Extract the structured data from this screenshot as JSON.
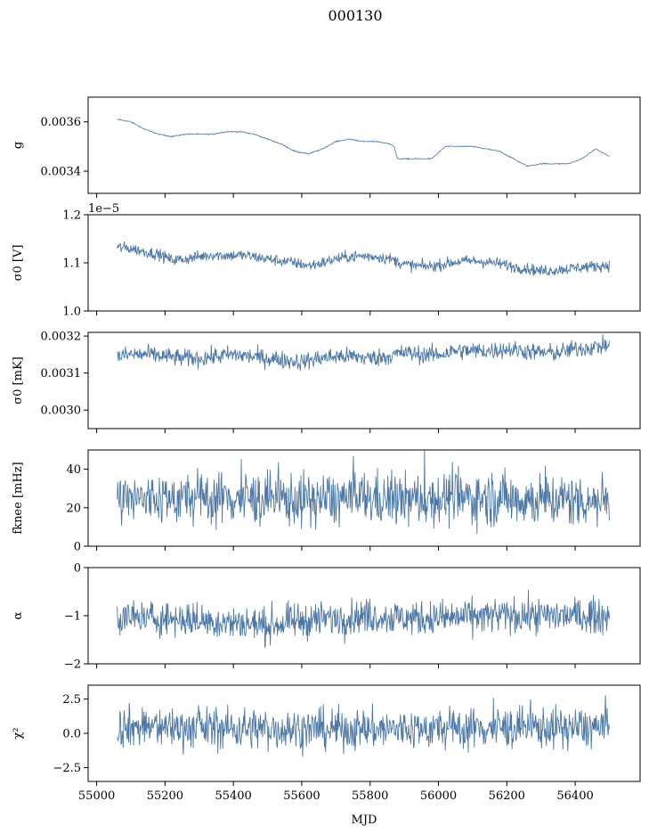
{
  "figure": {
    "title": "000130",
    "xlabel": "MJD",
    "x_ticks": [
      "55000",
      "55200",
      "55400",
      "55600",
      "55800",
      "56000",
      "56200",
      "56400"
    ],
    "xlim": [
      54975,
      56590
    ],
    "series_color": "#4e79a7"
  },
  "chart_data": [
    {
      "type": "line",
      "ylabel": "g",
      "ylim": [
        0.00331,
        0.0037
      ],
      "y_ticks": [
        0.0034,
        0.0036
      ],
      "y_tick_labels": [
        "0.0034",
        "0.0036"
      ],
      "offset_text": "",
      "noise": 1.2e-06,
      "x": [
        55060,
        55100,
        55140,
        55180,
        55220,
        55260,
        55300,
        55340,
        55380,
        55420,
        55460,
        55500,
        55540,
        55580,
        55620,
        55660,
        55700,
        55740,
        55780,
        55820,
        55860,
        55870,
        55880,
        55900,
        55940,
        55980,
        56020,
        56060,
        56100,
        56140,
        56180,
        56220,
        56260,
        56300,
        56340,
        56380,
        56420,
        56460,
        56500
      ],
      "y": [
        0.00361,
        0.0036,
        0.00357,
        0.00355,
        0.00354,
        0.00355,
        0.00355,
        0.00355,
        0.00356,
        0.00356,
        0.00355,
        0.00353,
        0.00351,
        0.00348,
        0.00347,
        0.00349,
        0.00352,
        0.00353,
        0.00352,
        0.00352,
        0.00351,
        0.0035,
        0.00345,
        0.00345,
        0.00345,
        0.00345,
        0.0035,
        0.0035,
        0.0035,
        0.00349,
        0.00348,
        0.00345,
        0.00342,
        0.00343,
        0.00343,
        0.00343,
        0.00345,
        0.00349,
        0.00346
      ]
    },
    {
      "type": "line",
      "ylabel": "σ0 [V]",
      "ylim": [
        1.0,
        1.2
      ],
      "y_ticks": [
        1.0,
        1.1,
        1.2
      ],
      "y_tick_labels": [
        "1.0",
        "1.1",
        "1.2"
      ],
      "offset_text": "1e−5",
      "noise": 0.006,
      "x": [
        55060,
        55100,
        55140,
        55180,
        55220,
        55260,
        55300,
        55340,
        55380,
        55420,
        55460,
        55500,
        55540,
        55580,
        55620,
        55660,
        55700,
        55740,
        55780,
        55820,
        55860,
        55900,
        55940,
        55980,
        56020,
        56060,
        56100,
        56140,
        56180,
        56220,
        56260,
        56300,
        56340,
        56380,
        56420,
        56460,
        56500
      ],
      "y": [
        1.132,
        1.13,
        1.123,
        1.118,
        1.106,
        1.108,
        1.113,
        1.117,
        1.115,
        1.116,
        1.113,
        1.108,
        1.104,
        1.1,
        1.094,
        1.1,
        1.108,
        1.113,
        1.114,
        1.113,
        1.108,
        1.097,
        1.093,
        1.093,
        1.098,
        1.103,
        1.104,
        1.102,
        1.098,
        1.092,
        1.088,
        1.083,
        1.085,
        1.088,
        1.091,
        1.093,
        1.095
      ]
    },
    {
      "type": "line",
      "ylabel": "σ0 [mK]",
      "ylim": [
        0.00295,
        0.00321
      ],
      "y_ticks": [
        0.003,
        0.0031,
        0.0032
      ],
      "y_tick_labels": [
        "0.0030",
        "0.0031",
        "0.0032"
      ],
      "offset_text": "",
      "noise": 1.2e-05,
      "x": [
        55060,
        55100,
        55150,
        55200,
        55250,
        55300,
        55350,
        55400,
        55450,
        55500,
        55550,
        55600,
        55650,
        55700,
        55750,
        55800,
        55850,
        55900,
        55950,
        56000,
        56050,
        56100,
        56150,
        56200,
        56250,
        56300,
        56350,
        56400,
        56450,
        56500
      ],
      "y": [
        0.003145,
        0.00315,
        0.00315,
        0.003145,
        0.00314,
        0.00314,
        0.003145,
        0.00315,
        0.003145,
        0.00314,
        0.003135,
        0.00313,
        0.00314,
        0.003145,
        0.003145,
        0.00314,
        0.003145,
        0.003155,
        0.00315,
        0.00315,
        0.00316,
        0.00316,
        0.00316,
        0.003165,
        0.00316,
        0.003155,
        0.003155,
        0.003165,
        0.00317,
        0.003175
      ]
    },
    {
      "type": "line",
      "ylabel": "fknee [mHz]",
      "ylim": [
        0,
        50
      ],
      "y_ticks": [
        0,
        20,
        40
      ],
      "y_tick_labels": [
        "0",
        "20",
        "40"
      ],
      "offset_text": "",
      "noise": 7,
      "x": [
        55060,
        55200,
        55400,
        55600,
        55800,
        55900,
        56000,
        56200,
        56300,
        56400,
        56500
      ],
      "y": [
        24,
        25,
        25,
        24,
        25,
        24,
        25,
        25,
        24,
        24,
        24
      ]
    },
    {
      "type": "line",
      "ylabel": "α",
      "ylim": [
        -2,
        0
      ],
      "y_ticks": [
        -2,
        -1,
        0
      ],
      "y_tick_labels": [
        "−2",
        "−1",
        "0"
      ],
      "offset_text": "",
      "noise": 0.18,
      "x": [
        55060,
        55200,
        55400,
        55500,
        55600,
        55800,
        55900,
        56000,
        56200,
        56300,
        56400,
        56500
      ],
      "y": [
        -1.05,
        -1.05,
        -1.15,
        -1.2,
        -1.1,
        -1.0,
        -1.05,
        -1.05,
        -1.0,
        -1.0,
        -1.0,
        -1.0
      ]
    },
    {
      "type": "line",
      "ylabel": "χ²",
      "ylim": [
        -3.5,
        3.5
      ],
      "y_ticks": [
        -2.5,
        0.0,
        2.5
      ],
      "y_tick_labels": [
        "−2.5",
        "0.0",
        "2.5"
      ],
      "offset_text": "",
      "noise": 0.75,
      "x": [
        55060,
        55300,
        55600,
        55900,
        56200,
        56500
      ],
      "y": [
        0.5,
        0.4,
        0.3,
        0.3,
        0.4,
        0.4
      ]
    }
  ]
}
